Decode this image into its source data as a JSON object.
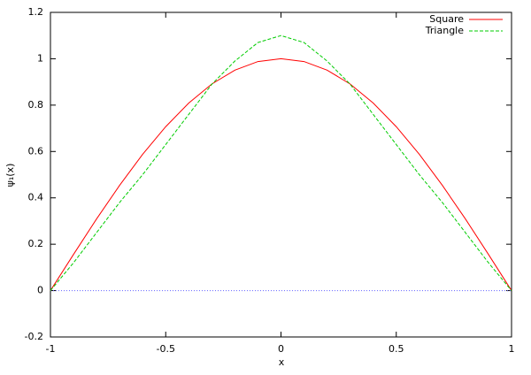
{
  "chart_data": {
    "type": "line",
    "x_label": "x",
    "y_label": "ψ₁(x)",
    "x": [
      -1,
      -0.9,
      -0.8,
      -0.7,
      -0.6,
      -0.5,
      -0.4,
      -0.3,
      -0.2,
      -0.1,
      0,
      0.1,
      0.2,
      0.3,
      0.4,
      0.5,
      0.6,
      0.7,
      0.8,
      0.9,
      1
    ],
    "series": [
      {
        "name": "Square",
        "color": "#ff0000",
        "dash": "solid",
        "values": [
          0,
          0.156,
          0.309,
          0.454,
          0.588,
          0.707,
          0.809,
          0.891,
          0.951,
          0.988,
          1,
          0.988,
          0.951,
          0.891,
          0.809,
          0.707,
          0.588,
          0.454,
          0.309,
          0.156,
          0
        ]
      },
      {
        "name": "Triangle",
        "color": "#00cc00",
        "dash": "dashed",
        "values": [
          0,
          0.12,
          0.25,
          0.38,
          0.5,
          0.63,
          0.76,
          0.89,
          0.99,
          1.07,
          1.1,
          1.07,
          0.99,
          0.89,
          0.76,
          0.63,
          0.5,
          0.38,
          0.25,
          0.12,
          0
        ]
      }
    ],
    "xlim": [
      -1,
      1
    ],
    "xticks": [
      -1,
      -0.5,
      0,
      0.5,
      1
    ],
    "ylim": [
      -0.2,
      1.2
    ],
    "yticks": [
      -0.2,
      0,
      0.2,
      0.4,
      0.6,
      0.8,
      1,
      1.2
    ],
    "zeroaxis": true,
    "zeroaxis_color": "#6666ff",
    "legend": "top-right"
  }
}
